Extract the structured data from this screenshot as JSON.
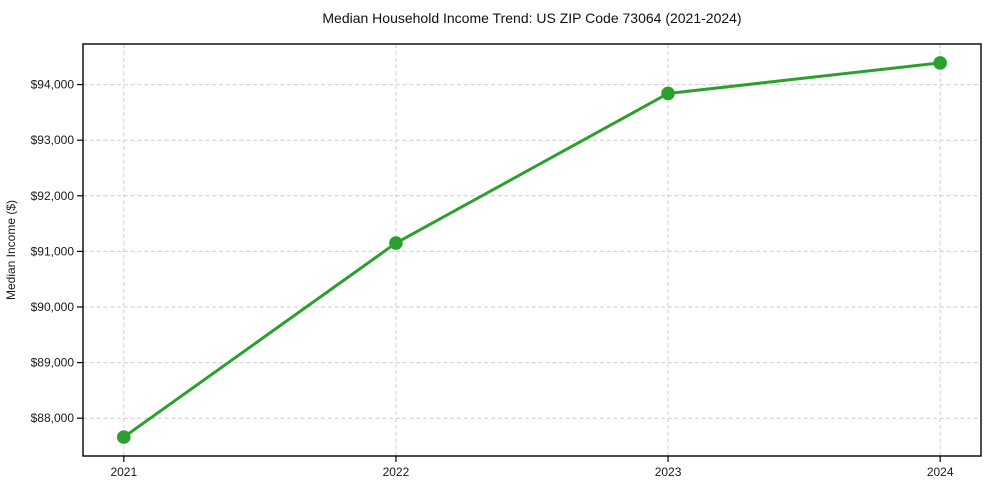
{
  "figure": {
    "title": "Median Household Income Trend: US ZIP Code 73064 (2021-2024)"
  },
  "chart_data": {
    "type": "line",
    "title": "Median Household Income Trend: US ZIP Code 73064 (2021-2024)",
    "xlabel": "",
    "ylabel": "Median Income ($)",
    "categories": [
      "2021",
      "2022",
      "2023",
      "2024"
    ],
    "x": [
      2021,
      2022,
      2023,
      2024
    ],
    "series": [
      {
        "name": "Median Household Income",
        "values": [
          87660,
          91150,
          93840,
          94390
        ]
      }
    ],
    "xlim": [
      2020.85,
      2024.15
    ],
    "ylim": [
      87320,
      94730
    ],
    "yticks": [
      88000,
      89000,
      90000,
      91000,
      92000,
      93000,
      94000
    ],
    "ytick_labels": [
      "$88,000",
      "$89,000",
      "$90,000",
      "$91,000",
      "$92,000",
      "$93,000",
      "$94,000"
    ],
    "xtick_labels": [
      "2021",
      "2022",
      "2023",
      "2024"
    ],
    "grid": true,
    "grid_style": "dashed",
    "legend": false,
    "colors": {
      "line": "#2ca02c",
      "marker": "#2ca02c",
      "grid": "#cdcdcd",
      "axis": "#000000",
      "text": "#1a1a1a",
      "background": "#ffffff"
    }
  }
}
